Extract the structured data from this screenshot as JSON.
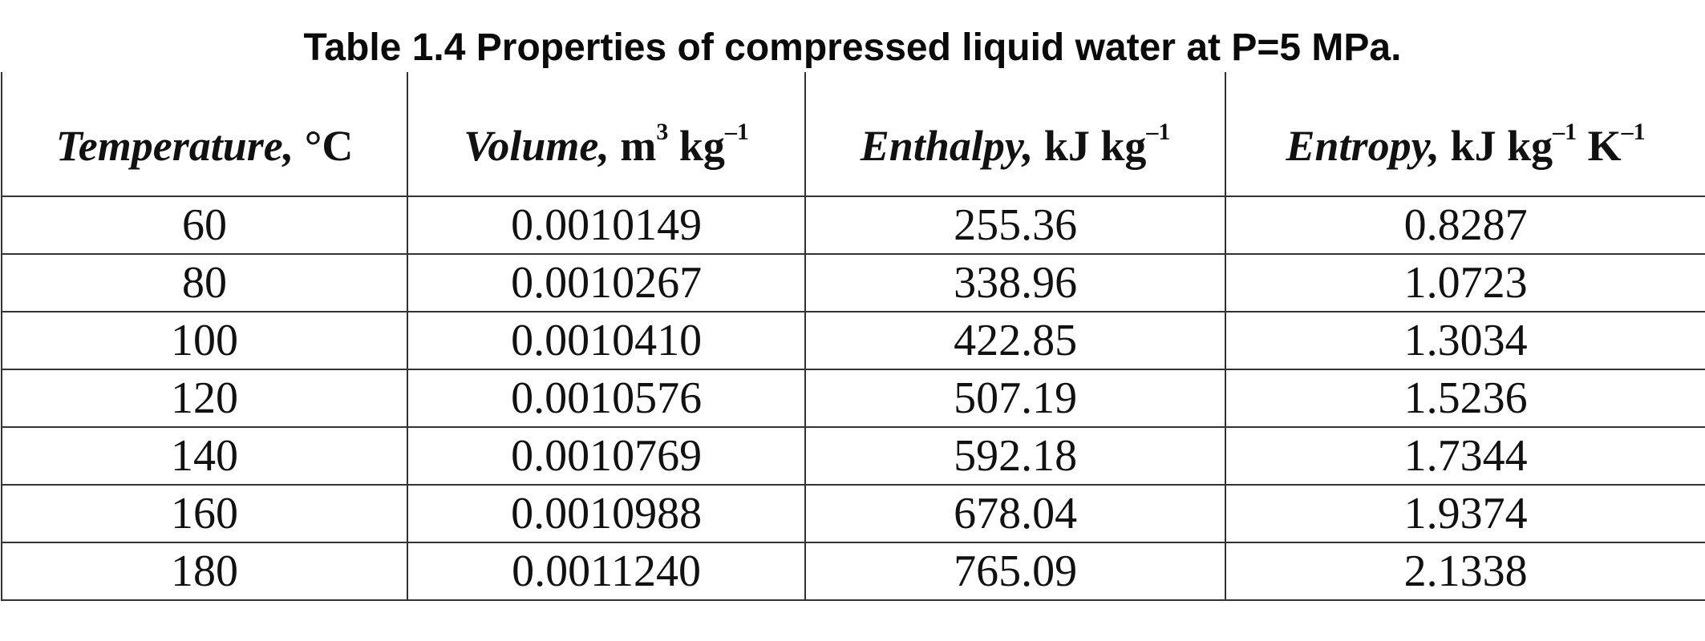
{
  "title": "Table 1.4 Properties of compressed liquid water at P=5 MPa.",
  "headers": [
    {
      "quantity": "Temperature,",
      "unit": "°C",
      "exps": []
    },
    {
      "quantity": "Volume,",
      "unit": "m",
      "exps": [
        "3",
        "kg",
        "–1"
      ]
    },
    {
      "quantity": "Enthalpy,",
      "unit": "kJ kg",
      "exps": [
        "–1"
      ]
    },
    {
      "quantity": "Entropy,",
      "unit": "kJ kg",
      "exps": [
        "–1",
        "K",
        "–1"
      ]
    }
  ],
  "rows": [
    [
      "60",
      "0.0010149",
      "255.36",
      "0.8287"
    ],
    [
      "80",
      "0.0010267",
      "338.96",
      "1.0723"
    ],
    [
      "100",
      "0.0010410",
      "422.85",
      "1.3034"
    ],
    [
      "120",
      "0.0010576",
      "507.19",
      "1.5236"
    ],
    [
      "140",
      "0.0010769",
      "592.18",
      "1.7344"
    ],
    [
      "160",
      "0.0010988",
      "678.04",
      "1.9374"
    ],
    [
      "180",
      "0.0011240",
      "765.09",
      "2.1338"
    ]
  ]
}
